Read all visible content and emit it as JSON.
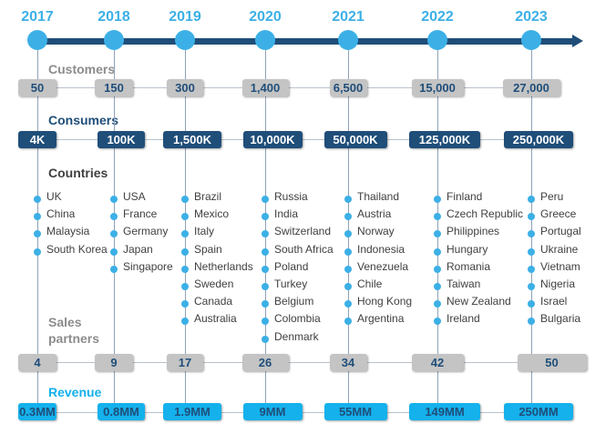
{
  "labels": {
    "customers": "Customers",
    "consumers": "Consumers",
    "countries": "Countries",
    "sales_partners_1": "Sales",
    "sales_partners_2": "partners",
    "revenue": "Revenue"
  },
  "colors": {
    "axis": "#1f4e79",
    "node": "#3cb0e6",
    "gray": "#c4c4c4",
    "navy": "#1f4e79",
    "cyan": "#14b1ec"
  },
  "years": [
    {
      "year": "2017",
      "customers": "50",
      "consumers": "4K",
      "countries": [
        "UK",
        "China",
        "Malaysia",
        "South Korea"
      ],
      "sales_partners": "4",
      "revenue": "0.3MM"
    },
    {
      "year": "2018",
      "customers": "150",
      "consumers": "100K",
      "countries": [
        "USA",
        "France",
        "Germany",
        "Japan",
        "Singapore"
      ],
      "sales_partners": "9",
      "revenue": "0.8MM"
    },
    {
      "year": "2019",
      "customers": "300",
      "consumers": "1,500K",
      "countries": [
        "Brazil",
        "Mexico",
        "Italy",
        "Spain",
        "Netherlands",
        "Sweden",
        "Canada",
        "Australia"
      ],
      "sales_partners": "17",
      "revenue": "1.9MM"
    },
    {
      "year": "2020",
      "customers": "1,400",
      "consumers": "10,000K",
      "countries": [
        "Russia",
        "India",
        "Switzerland",
        "South Africa",
        "Poland",
        "Turkey",
        "Belgium",
        "Colombia",
        "Denmark"
      ],
      "sales_partners": "26",
      "revenue": "9MM"
    },
    {
      "year": "2021",
      "customers": "6,500",
      "consumers": "50,000K",
      "countries": [
        "Thailand",
        "Austria",
        "Norway",
        "Indonesia",
        "Venezuela",
        "Chile",
        "Hong Kong",
        "Argentina"
      ],
      "sales_partners": "34",
      "revenue": "55MM"
    },
    {
      "year": "2022",
      "customers": "15,000",
      "consumers": "125,000K",
      "countries": [
        "Finland",
        "Czech Republic",
        "Philippines",
        "Hungary",
        "Romania",
        "Taiwan",
        "New Zealand",
        "Ireland"
      ],
      "sales_partners": "42",
      "revenue": "149MM"
    },
    {
      "year": "2023",
      "customers": "27,000",
      "consumers": "250,000K",
      "countries": [
        "Peru",
        "Greece",
        "Portugal",
        "Ukraine",
        "Vietnam",
        "Nigeria",
        "Israel",
        "Bulgaria"
      ],
      "sales_partners": "50",
      "revenue": "250MM"
    }
  ]
}
